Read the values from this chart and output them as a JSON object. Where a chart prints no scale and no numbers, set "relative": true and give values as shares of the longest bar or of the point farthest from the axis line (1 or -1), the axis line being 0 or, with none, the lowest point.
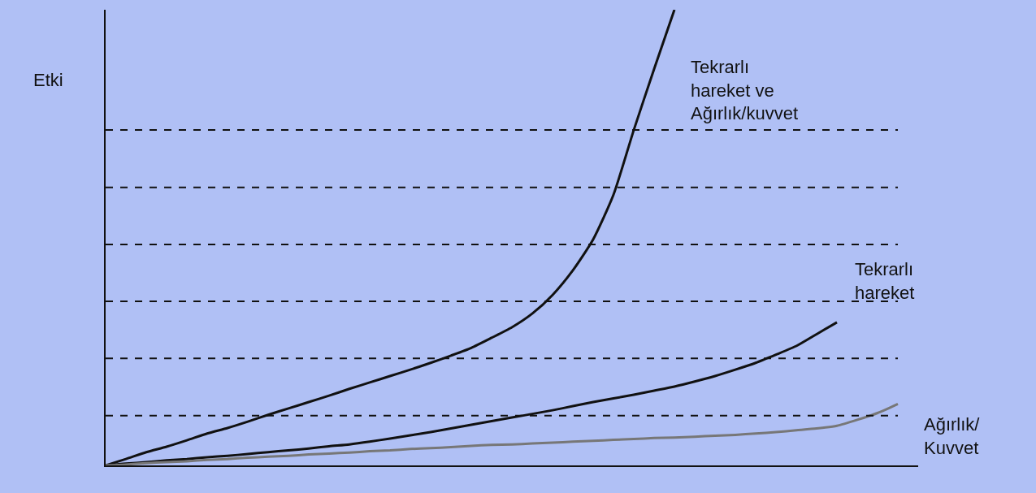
{
  "chart_data": {
    "type": "line",
    "ylabel": "Etki",
    "relative": true,
    "legend": false,
    "marker": "none",
    "line_style": "solid",
    "categories": [
      null,
      null,
      null,
      null,
      null,
      null,
      null,
      null,
      null,
      null,
      null,
      null,
      null,
      null,
      null,
      null,
      null,
      null,
      null,
      null,
      null,
      null,
      null,
      null,
      null,
      null,
      null,
      null,
      null,
      null,
      null,
      null,
      null,
      null,
      null,
      null,
      null,
      null,
      null,
      null,
      null
    ],
    "series": [
      {
        "name": "Tekrarlı\nhareket ve\nAğırlık/kuvvet",
        "color": "#111111",
        "values": [
          0,
          0.014,
          0.029,
          0.041,
          0.055,
          0.07,
          0.082,
          0.096,
          0.111,
          0.125,
          0.139,
          0.153,
          0.168,
          0.182,
          0.196,
          0.21,
          0.225,
          0.241,
          0.258,
          0.28,
          0.303,
          0.333,
          0.374,
          0.428,
          0.496,
          0.594,
          0.736,
          0.87,
          1,
          null,
          null,
          null,
          null,
          null,
          null,
          null,
          null,
          null,
          null,
          null,
          null
        ]
      },
      {
        "name": "Tekrarlı\nhareket",
        "color": "#111111",
        "values": [
          0,
          0.004,
          0.007,
          0.011,
          0.014,
          0.018,
          0.021,
          0.025,
          0.029,
          0.033,
          0.037,
          0.042,
          0.046,
          0.052,
          0.059,
          0.066,
          0.073,
          0.081,
          0.089,
          0.097,
          0.105,
          0.113,
          0.121,
          0.13,
          0.139,
          0.147,
          0.155,
          0.164,
          0.173,
          0.184,
          0.196,
          0.21,
          0.225,
          0.243,
          0.262,
          0.288,
          0.314,
          null,
          null,
          null,
          null
        ]
      },
      {
        "name": "Ağırlık/\nKuvvet",
        "color": "#777777",
        "values": [
          0,
          0.002,
          0.005,
          0.007,
          0.009,
          0.012,
          0.014,
          0.017,
          0.019,
          0.021,
          0.024,
          0.026,
          0.028,
          0.031,
          0.033,
          0.036,
          0.038,
          0.04,
          0.043,
          0.045,
          0.046,
          0.048,
          0.05,
          0.052,
          0.054,
          0.056,
          0.058,
          0.06,
          0.061,
          0.063,
          0.065,
          0.067,
          0.07,
          0.073,
          0.077,
          0.081,
          0.087,
          0.1,
          0.115,
          0.135,
          null
        ]
      }
    ],
    "ref_lines": [
      {
        "axis": "y",
        "value": 0.109,
        "line_style": "dashed",
        "color": "#111111"
      },
      {
        "axis": "y",
        "value": 0.235,
        "line_style": "dashed",
        "color": "#111111"
      },
      {
        "axis": "y",
        "value": 0.36,
        "line_style": "dashed",
        "color": "#111111"
      },
      {
        "axis": "y",
        "value": 0.485,
        "line_style": "dashed",
        "color": "#111111"
      },
      {
        "axis": "y",
        "value": 0.61,
        "line_style": "dashed",
        "color": "#111111"
      },
      {
        "axis": "y",
        "value": 0.736,
        "line_style": "dashed",
        "color": "#111111"
      }
    ]
  }
}
